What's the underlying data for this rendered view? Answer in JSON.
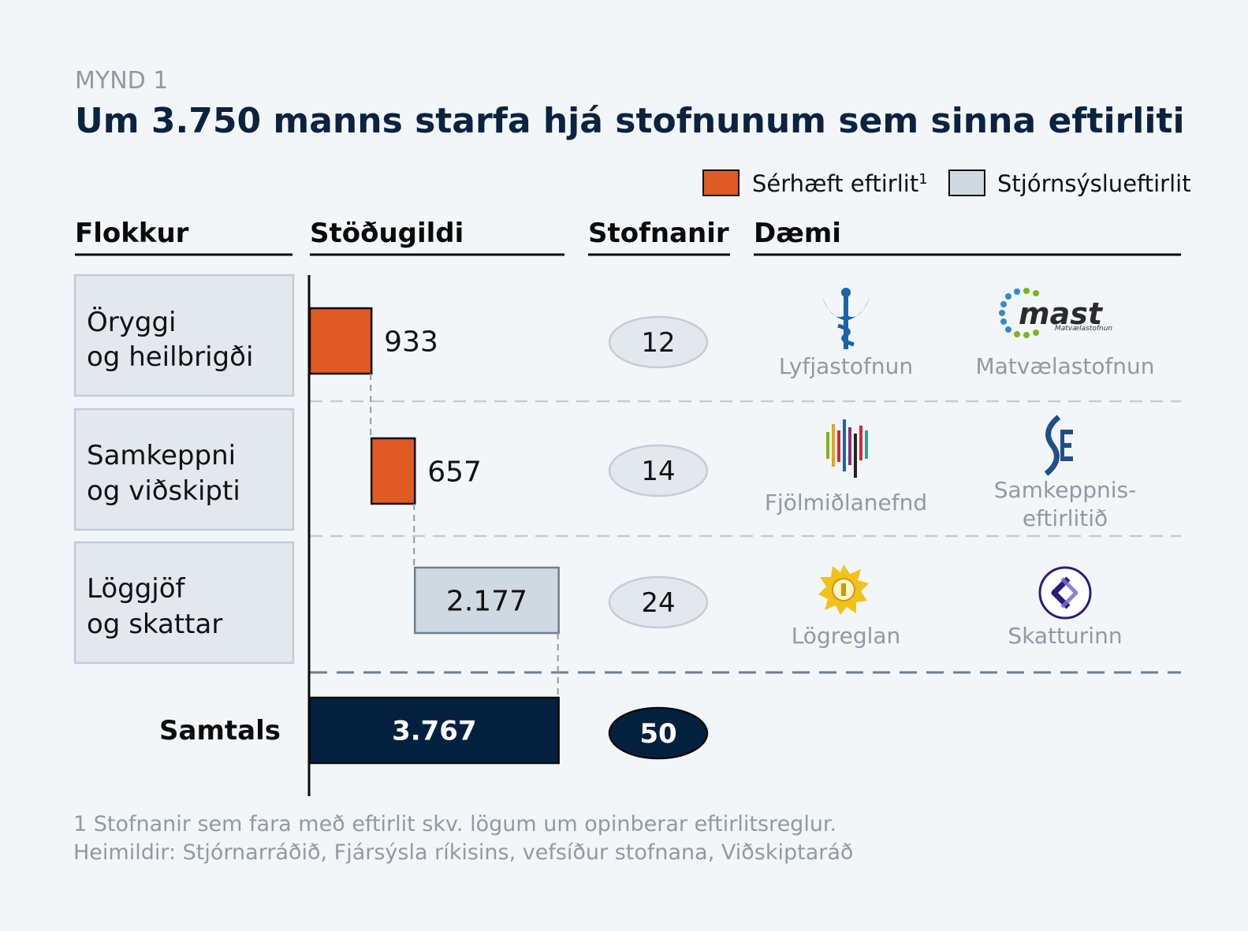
{
  "figure_label": "MYND 1",
  "title": "Um 3.750 manns starfa hjá stofnunum sem sinna eftirliti",
  "legend": [
    {
      "label": "Sérhæft eftirlit",
      "superscript": "1",
      "color": "#e05a24"
    },
    {
      "label": "Stjórnsýslueftirlit",
      "color": "#cfd9e1"
    }
  ],
  "headers": {
    "category": "Flokkur",
    "fte": "Stöðugildi",
    "agencies": "Stofnanir",
    "examples": "Dæmi"
  },
  "colors": {
    "specialized": "#e05a24",
    "administrative": "#cfd9e1",
    "total": "#03213f",
    "category_box": "#e2e8ee",
    "count_pill": "#e2e8ee",
    "muted_text": "#8e9aa6"
  },
  "chart_data": {
    "type": "bar",
    "subtype": "waterfall",
    "categories": [
      {
        "line1": "Öryggi",
        "line2": "og heilbrigði"
      },
      {
        "line1": "Samkeppni",
        "line2": "og viðskipti"
      },
      {
        "line1": "Löggjöf",
        "line2": "og skattar"
      }
    ],
    "series": [
      {
        "name": "Sérhæft eftirlit",
        "values": [
          933,
          657,
          null
        ]
      },
      {
        "name": "Stjórnsýslueftirlit",
        "values": [
          null,
          null,
          2177
        ]
      }
    ],
    "value_labels": [
      "933",
      "657",
      "2.177"
    ],
    "agency_counts": [
      "12",
      "14",
      "24"
    ],
    "total": {
      "label": "Samtals",
      "value": 3767,
      "value_label": "3.767",
      "agency_count": "50"
    },
    "examples": [
      [
        {
          "name": "Lyfjastofnun",
          "icon": "caduceus-icon"
        },
        {
          "name": "Matvælastofnun",
          "logo_text": "mast",
          "logo_subtext": "Matvælastofnun",
          "icon": "mast-logo-icon"
        }
      ],
      [
        {
          "name": "Fjölmiðlanefnd",
          "icon": "bars-logo-icon"
        },
        {
          "name": "Samkeppnis-",
          "name2": "eftirlitið",
          "icon": "se-logo-icon"
        }
      ],
      [
        {
          "name": "Lögreglan",
          "icon": "police-badge-icon"
        },
        {
          "name": "Skatturinn",
          "icon": "skatturinn-logo-icon"
        }
      ]
    ]
  },
  "footnotes": [
    "1 Stofnanir sem fara með eftirlit skv. lögum um opinberar eftirlitsreglur.",
    "Heimildir: Stjórnarráðið, Fjársýsla ríkisins, vefsíður stofnana, Viðskiptaráð"
  ]
}
